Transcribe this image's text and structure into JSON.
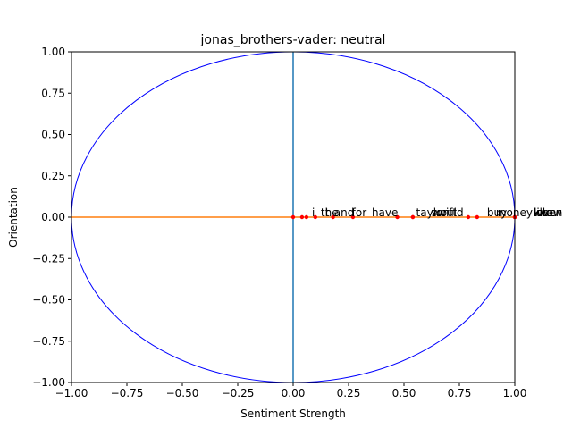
{
  "chart_data": {
    "type": "scatter",
    "title": "jonas_brothers-vader: neutral",
    "xlabel": "Sentiment Strength",
    "ylabel": "Orientation",
    "xlim": [
      -1.0,
      1.0
    ],
    "ylim": [
      -1.0,
      1.0
    ],
    "x_ticks": [
      "−1.00",
      "−0.75",
      "−0.50",
      "−0.25",
      "0.00",
      "0.25",
      "0.50",
      "0.75",
      "1.00"
    ],
    "y_ticks": [
      "−1.00",
      "−0.75",
      "−0.50",
      "−0.25",
      "0.00",
      "0.25",
      "0.50",
      "0.75",
      "1.00"
    ],
    "grid": false,
    "colors": {
      "circle": "#0000ff",
      "vertical_line": "#1f77b4",
      "horizontal_line": "#ff7f0e",
      "points": "#ff0000"
    },
    "points": [
      {
        "label": "i",
        "x": 0.0,
        "y": 0.0
      },
      {
        "label": "the",
        "x": 0.04,
        "y": 0.0
      },
      {
        "label": "t",
        "x": 0.06,
        "y": 0.0
      },
      {
        "label": "and",
        "x": 0.1,
        "y": 0.0
      },
      {
        "label": "for",
        "x": 0.18,
        "y": 0.0
      },
      {
        "label": "have",
        "x": 0.27,
        "y": 0.0
      },
      {
        "label": "taylor",
        "x": 0.47,
        "y": 0.0
      },
      {
        "label": "swift",
        "x": 0.54,
        "y": 0.0
      },
      {
        "label": "would",
        "x": 0.54,
        "y": 0.0
      },
      {
        "label": "buy",
        "x": 0.79,
        "y": 0.0
      },
      {
        "label": "money",
        "x": 0.83,
        "y": 0.0
      },
      {
        "label": "when",
        "x": 1.0,
        "y": 0.0
      },
      {
        "label": "know",
        "x": 1.0,
        "y": 0.0
      },
      {
        "label": "love",
        "x": 1.0,
        "y": 0.0
      },
      {
        "label": "like",
        "x": 1.0,
        "y": 0.0
      }
    ]
  }
}
